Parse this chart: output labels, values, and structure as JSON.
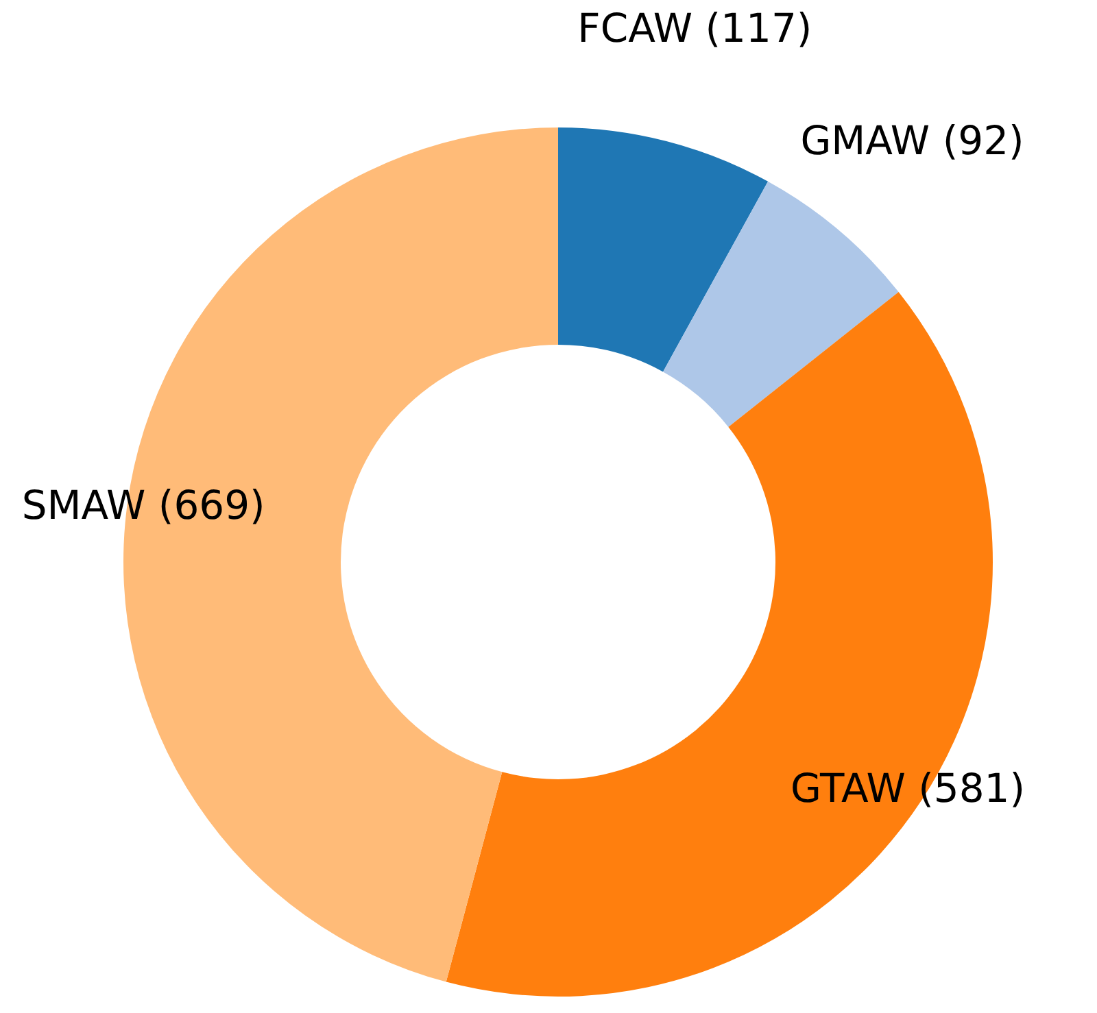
{
  "chart_data": {
    "type": "donut",
    "categories": [
      "FCAW",
      "GMAW",
      "GTAW",
      "SMAW"
    ],
    "values": [
      117,
      92,
      581,
      669
    ],
    "value_labels": [
      "(117)",
      "(92)",
      "(581)",
      "(669)"
    ],
    "colors": [
      "#1f77b4",
      "#aec7e8",
      "#ff7f0e",
      "#ffbb78"
    ]
  }
}
